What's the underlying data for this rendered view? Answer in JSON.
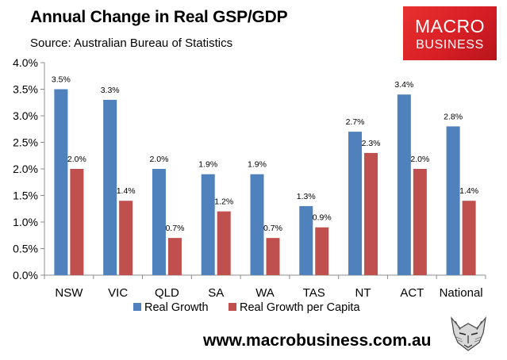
{
  "header": {
    "title": "Annual Change in Real GSP/GDP",
    "subtitle": "Source: Australian Bureau of Statistics"
  },
  "logo": {
    "line1": "MACRO",
    "line2": "BUSINESS"
  },
  "footer": {
    "website": "www.macrobusiness.com.au"
  },
  "colors": {
    "series1": "#4f81bd",
    "series2": "#c0504d",
    "grid": "#8c8c8c"
  },
  "chart_data": {
    "type": "bar",
    "title": "Annual Change in Real GSP/GDP",
    "xlabel": "",
    "ylabel": "",
    "ylim": [
      0,
      4.0
    ],
    "yticks": [
      "0.0%",
      "0.5%",
      "1.0%",
      "1.5%",
      "2.0%",
      "2.5%",
      "3.0%",
      "3.5%",
      "4.0%"
    ],
    "categories": [
      "NSW",
      "VIC",
      "QLD",
      "SA",
      "WA",
      "TAS",
      "NT",
      "ACT",
      "National"
    ],
    "series": [
      {
        "name": "Real Growth",
        "values": [
          3.5,
          3.3,
          2.0,
          1.9,
          1.9,
          1.3,
          2.7,
          3.4,
          2.8
        ],
        "labels": [
          "3.5%",
          "3.3%",
          "2.0%",
          "1.9%",
          "1.9%",
          "1.3%",
          "2.7%",
          "3.4%",
          "2.8%"
        ]
      },
      {
        "name": "Real Growth per Capita",
        "values": [
          2.0,
          1.4,
          0.7,
          1.2,
          0.7,
          0.9,
          2.3,
          2.0,
          1.4
        ],
        "labels": [
          "2.0%",
          "1.4%",
          "0.7%",
          "1.2%",
          "0.7%",
          "0.9%",
          "2.3%",
          "2.0%",
          "1.4%"
        ]
      }
    ],
    "legend_position": "bottom",
    "grid": false
  }
}
